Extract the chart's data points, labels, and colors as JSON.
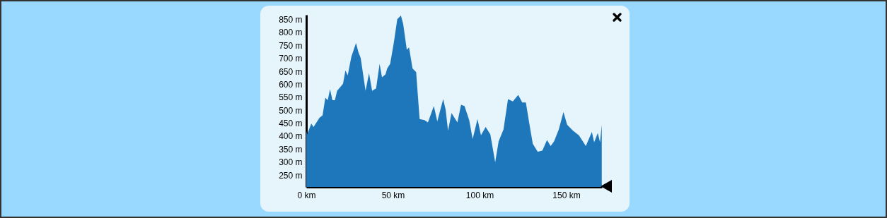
{
  "chart_data": {
    "type": "area",
    "color": "#1f77bb",
    "x": [
      0,
      0.5,
      2.9,
      4.2,
      7.6,
      9.4,
      11,
      12.4,
      13.7,
      15.1,
      16.5,
      17.8,
      21.2,
      22.6,
      23.9,
      26,
      28.7,
      30.1,
      31.4,
      34.2,
      36.2,
      38,
      40.3,
      42.3,
      43.7,
      45.7,
      46.7,
      48.4,
      50.5,
      52.5,
      54.6,
      55.9,
      58,
      59.3,
      61.3,
      63.4,
      65.4,
      68.2,
      70.2,
      73.6,
      75.6,
      79,
      80.4,
      81.8,
      83.8,
      87.2,
      89.3,
      91.3,
      94,
      96,
      98.8,
      100.8,
      103.5,
      106.2,
      109,
      111,
      113.8,
      116.4,
      119.2,
      122.3,
      124.6,
      126.7,
      128.7,
      130.7,
      133.5,
      136.2,
      138.9,
      141,
      143,
      145.7,
      148.4,
      150.5,
      153.9,
      157.3,
      161.3,
      164.8,
      166.1,
      168.2,
      169.5,
      170.5
    ],
    "values": [
      421,
      407,
      448,
      435,
      471,
      480,
      548,
      539,
      581,
      539,
      539,
      575,
      602,
      654,
      634,
      706,
      759,
      724,
      701,
      575,
      643,
      575,
      584,
      679,
      627,
      638,
      661,
      679,
      760,
      851,
      865,
      833,
      733,
      742,
      661,
      647,
      466,
      462,
      453,
      516,
      457,
      543,
      503,
      421,
      489,
      453,
      521,
      516,
      462,
      389,
      466,
      403,
      435,
      407,
      299,
      380,
      426,
      543,
      534,
      559,
      530,
      530,
      448,
      371,
      340,
      344,
      385,
      362,
      380,
      426,
      493,
      444,
      421,
      403,
      362,
      416,
      376,
      412,
      376,
      444
    ],
    "xlim": [
      0,
      170.6
    ],
    "ylim": [
      204,
      868
    ],
    "xticks": [
      {
        "value": 0,
        "label": "0 km"
      },
      {
        "value": 50,
        "label": "50 km"
      },
      {
        "value": 100,
        "label": "100 km"
      },
      {
        "value": 150,
        "label": "150 km"
      }
    ],
    "yticks": [
      {
        "value": 250,
        "label": "250 m"
      },
      {
        "value": 300,
        "label": "300 m"
      },
      {
        "value": 350,
        "label": "350 m"
      },
      {
        "value": 400,
        "label": "400 m"
      },
      {
        "value": 450,
        "label": "450 m"
      },
      {
        "value": 500,
        "label": "500 m"
      },
      {
        "value": 550,
        "label": "550 m"
      },
      {
        "value": 600,
        "label": "600 m"
      },
      {
        "value": 650,
        "label": "650 m"
      },
      {
        "value": 700,
        "label": "700 m"
      },
      {
        "value": 750,
        "label": "750 m"
      },
      {
        "value": 800,
        "label": "800 m"
      },
      {
        "value": 850,
        "label": "850 m"
      }
    ]
  }
}
